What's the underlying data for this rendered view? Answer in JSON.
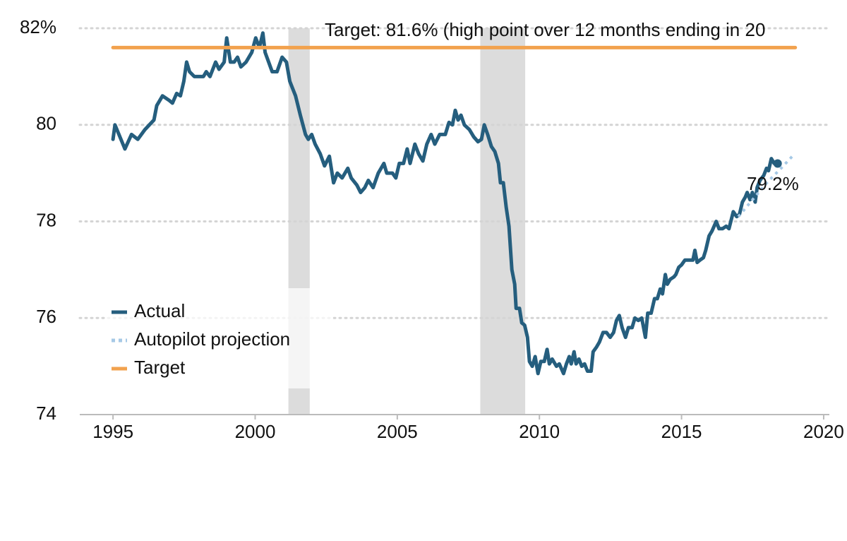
{
  "chart_data": {
    "type": "line",
    "target_note": "Target: 81.6% (high point over 12 months ending in 20",
    "end_label": "79.2%",
    "xlim": [
      1993.83,
      2020.2
    ],
    "xticks": [
      1995,
      2000,
      2005,
      2010,
      2015,
      2020
    ],
    "ylim": [
      74,
      82
    ],
    "yticks": [
      74,
      76,
      78,
      80,
      {
        "value": 82,
        "label": "82%"
      }
    ],
    "grid": true,
    "legend": "lower left",
    "recessions": [
      [
        2001.17,
        2001.92
      ],
      [
        2007.92,
        2009.5
      ]
    ],
    "recession_color": "#dcdcdc",
    "series": [
      {
        "name": "Actual",
        "color": "#255e7e",
        "style": "solid",
        "x": [
          1995.0,
          1995.07,
          1995.42,
          1995.65,
          1995.87,
          1996.12,
          1996.44,
          1996.54,
          1996.64,
          1996.74,
          1996.99,
          1997.09,
          1997.24,
          1997.37,
          1997.49,
          1997.59,
          1997.69,
          1997.86,
          1998.18,
          1998.28,
          1998.41,
          1998.61,
          1998.73,
          1998.91,
          1999.0,
          1999.13,
          1999.26,
          1999.38,
          1999.5,
          1999.68,
          1999.88,
          2000.02,
          2000.15,
          2000.27,
          2000.35,
          2000.6,
          2000.77,
          2000.95,
          2001.1,
          2001.22,
          2001.42,
          2001.59,
          2001.77,
          2001.87,
          2001.99,
          2002.11,
          2002.29,
          2002.44,
          2002.61,
          2002.76,
          2002.89,
          2003.06,
          2003.26,
          2003.38,
          2003.58,
          2003.71,
          2003.86,
          2003.98,
          2004.15,
          2004.33,
          2004.53,
          2004.63,
          2004.83,
          2004.95,
          2005.07,
          2005.22,
          2005.35,
          2005.45,
          2005.62,
          2005.75,
          2005.9,
          2006.04,
          2006.19,
          2006.32,
          2006.49,
          2006.69,
          2006.82,
          2006.94,
          2007.04,
          2007.14,
          2007.24,
          2007.36,
          2007.54,
          2007.69,
          2007.84,
          2007.96,
          2008.06,
          2008.18,
          2008.31,
          2008.43,
          2008.56,
          2008.63,
          2008.73,
          2008.83,
          2008.93,
          2009.03,
          2009.13,
          2009.18,
          2009.3,
          2009.38,
          2009.48,
          2009.58,
          2009.65,
          2009.75,
          2009.85,
          2009.95,
          2010.05,
          2010.17,
          2010.27,
          2010.35,
          2010.45,
          2010.6,
          2010.7,
          2010.85,
          2010.95,
          2011.05,
          2011.12,
          2011.22,
          2011.29,
          2011.39,
          2011.49,
          2011.59,
          2011.69,
          2011.82,
          2011.89,
          2012.01,
          2012.11,
          2012.24,
          2012.36,
          2012.49,
          2012.61,
          2012.71,
          2012.81,
          2012.91,
          2013.03,
          2013.13,
          2013.26,
          2013.36,
          2013.48,
          2013.6,
          2013.73,
          2013.81,
          2013.93,
          2014.05,
          2014.15,
          2014.25,
          2014.33,
          2014.43,
          2014.5,
          2014.6,
          2014.73,
          2014.8,
          2014.9,
          2015.0,
          2015.12,
          2015.27,
          2015.4,
          2015.47,
          2015.55,
          2015.65,
          2015.77,
          2015.85,
          2015.97,
          2016.07,
          2016.22,
          2016.32,
          2016.44,
          2016.57,
          2016.67,
          2016.82,
          2016.94,
          2017.04,
          2017.14,
          2017.24,
          2017.31,
          2017.41,
          2017.49,
          2017.59,
          2017.66,
          2017.76,
          2017.89,
          2017.99,
          2018.06,
          2018.16,
          2018.26,
          2018.38
        ],
        "values": [
          79.7,
          80.0,
          79.5,
          79.8,
          79.7,
          79.9,
          80.1,
          80.4,
          80.5,
          80.6,
          80.5,
          80.45,
          80.65,
          80.6,
          80.9,
          81.3,
          81.1,
          81.0,
          81.0,
          81.1,
          81.0,
          81.3,
          81.15,
          81.3,
          81.8,
          81.3,
          81.3,
          81.4,
          81.2,
          81.3,
          81.5,
          81.8,
          81.6,
          81.9,
          81.5,
          81.1,
          81.1,
          81.4,
          81.3,
          80.9,
          80.6,
          80.2,
          79.8,
          79.7,
          79.8,
          79.6,
          79.4,
          79.15,
          79.35,
          78.8,
          79.0,
          78.9,
          79.1,
          78.9,
          78.75,
          78.6,
          78.7,
          78.85,
          78.7,
          79.0,
          79.2,
          79.0,
          79.0,
          78.9,
          79.2,
          79.2,
          79.5,
          79.2,
          79.6,
          79.4,
          79.25,
          79.6,
          79.8,
          79.6,
          79.8,
          79.8,
          80.05,
          80.0,
          80.3,
          80.1,
          80.2,
          80.0,
          79.9,
          79.75,
          79.65,
          79.7,
          80.0,
          79.8,
          79.55,
          79.45,
          79.2,
          78.8,
          78.8,
          78.3,
          77.9,
          77.0,
          76.7,
          76.2,
          76.2,
          75.9,
          75.85,
          75.6,
          75.1,
          75.0,
          75.2,
          74.85,
          75.1,
          75.1,
          75.35,
          75.05,
          75.15,
          75.0,
          75.05,
          74.85,
          75.05,
          75.2,
          75.05,
          75.3,
          75.05,
          75.15,
          75.0,
          75.05,
          74.9,
          74.9,
          75.3,
          75.4,
          75.5,
          75.7,
          75.7,
          75.6,
          75.7,
          75.95,
          76.05,
          75.8,
          75.6,
          75.8,
          75.8,
          76.0,
          75.95,
          76.0,
          75.6,
          76.1,
          76.1,
          76.4,
          76.4,
          76.6,
          76.5,
          76.9,
          76.7,
          76.8,
          76.85,
          76.9,
          77.05,
          77.1,
          77.2,
          77.2,
          77.2,
          77.4,
          77.15,
          77.2,
          77.25,
          77.4,
          77.7,
          77.8,
          78.0,
          77.85,
          77.85,
          77.9,
          77.85,
          78.2,
          78.1,
          78.15,
          78.4,
          78.5,
          78.6,
          78.45,
          78.6,
          78.4,
          78.7,
          78.85,
          78.95,
          79.1,
          79.05,
          79.3,
          79.2,
          79.2
        ]
      },
      {
        "name": "Autopilot projection",
        "color": "#a6c9e6",
        "style": "dotted",
        "x": [
          2017.0,
          2017.5,
          2018.0,
          2018.5,
          2018.9
        ],
        "values": [
          78.1,
          78.45,
          78.8,
          79.1,
          79.35
        ]
      },
      {
        "name": "Target",
        "color": "#f2a24e",
        "style": "solid",
        "x": [
          1995.0,
          2019.0
        ],
        "values": [
          81.6,
          81.6
        ]
      }
    ]
  }
}
